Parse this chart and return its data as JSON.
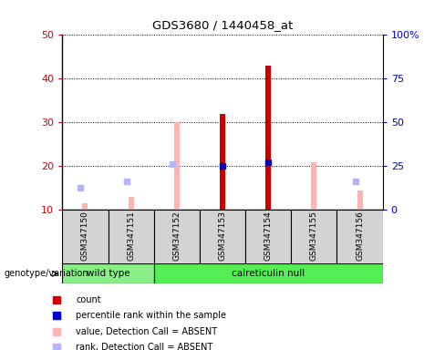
{
  "title": "GDS3680 / 1440458_at",
  "samples": [
    "GSM347150",
    "GSM347151",
    "GSM347152",
    "GSM347153",
    "GSM347154",
    "GSM347155",
    "GSM347156"
  ],
  "count_values": [
    null,
    null,
    null,
    32,
    43,
    null,
    null
  ],
  "count_color": "#cc0000",
  "percentile_rank": [
    null,
    null,
    null,
    20,
    21,
    null,
    null
  ],
  "percentile_rank_color": "#0000cc",
  "absent_value": [
    11.5,
    13,
    30,
    null,
    null,
    21,
    14.5
  ],
  "absent_value_color": "#ffb3b3",
  "absent_rank": [
    15,
    16.5,
    20.5,
    null,
    null,
    null,
    16.5
  ],
  "absent_rank_color": "#b3b3ff",
  "ylim_left": [
    10,
    50
  ],
  "ylim_right": [
    0,
    100
  ],
  "yticks_left": [
    10,
    20,
    30,
    40,
    50
  ],
  "yticks_right": [
    0,
    25,
    50,
    75,
    100
  ],
  "yticklabels_right": [
    "0",
    "25",
    "50",
    "75",
    "100%"
  ],
  "tick_label_color_left": "#cc0000",
  "tick_label_color_right": "#0000cc",
  "bar_width": 0.12,
  "marker_size": 4,
  "legend_items": [
    {
      "label": "count",
      "color": "#cc0000"
    },
    {
      "label": "percentile rank within the sample",
      "color": "#0000cc"
    },
    {
      "label": "value, Detection Call = ABSENT",
      "color": "#ffb3b3"
    },
    {
      "label": "rank, Detection Call = ABSENT",
      "color": "#b3b3ff"
    }
  ]
}
